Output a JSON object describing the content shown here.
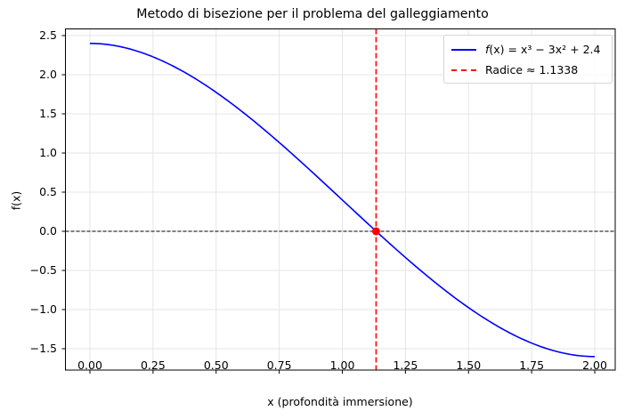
{
  "chart_data": {
    "type": "line",
    "title": "Metodo di bisezione per il problema del galleggiamento",
    "xlabel": "x (profondità immersione)",
    "ylabel": "f(x)",
    "xlim": [
      -0.1,
      2.1
    ],
    "ylim": [
      -1.77,
      2.59
    ],
    "grid": true,
    "legend_position": "upper right",
    "x_ticks": [
      "0.00",
      "0.25",
      "0.50",
      "0.75",
      "1.00",
      "1.25",
      "1.50",
      "1.75",
      "2.00"
    ],
    "y_ticks": [
      "−1.5",
      "−1.0",
      "−0.5",
      "0.0",
      "0.5",
      "1.0",
      "1.5",
      "2.0",
      "2.5"
    ],
    "series": [
      {
        "name": "f(x) = x^3 − 3x^2 + 2.4",
        "style": "solid",
        "color": "#0000ff",
        "function": "x^3 - 3x^2 + 2.4",
        "x": [
          0.0,
          0.25,
          0.5,
          0.75,
          1.0,
          1.1338,
          1.25,
          1.5,
          1.75,
          2.0
        ],
        "y": [
          2.4,
          2.2281,
          1.775,
          1.1344,
          0.4,
          0.0,
          -0.3281,
          -0.975,
          -1.3969,
          -1.6
        ]
      },
      {
        "name": "Radice ≈ 1.1338",
        "style": "dashed vertical line",
        "color": "#ff0000",
        "x": 1.1338
      }
    ],
    "annotations": [
      {
        "type": "horizontal dashed line",
        "y": 0.0,
        "color": "#000000"
      },
      {
        "type": "point",
        "x": 1.1338,
        "y": 0.0,
        "color": "#ff0000"
      }
    ]
  },
  "labels": {
    "title": "Metodo di bisezione per il problema del galleggiamento",
    "xlabel": "x (profondità immersione)",
    "ylabel": "f(x)",
    "legend_func_prefix": "f",
    "legend_func_rest": "(x) = x³ − 3x² + 2.4",
    "legend_root": "Radice ≈ 1.1338"
  }
}
